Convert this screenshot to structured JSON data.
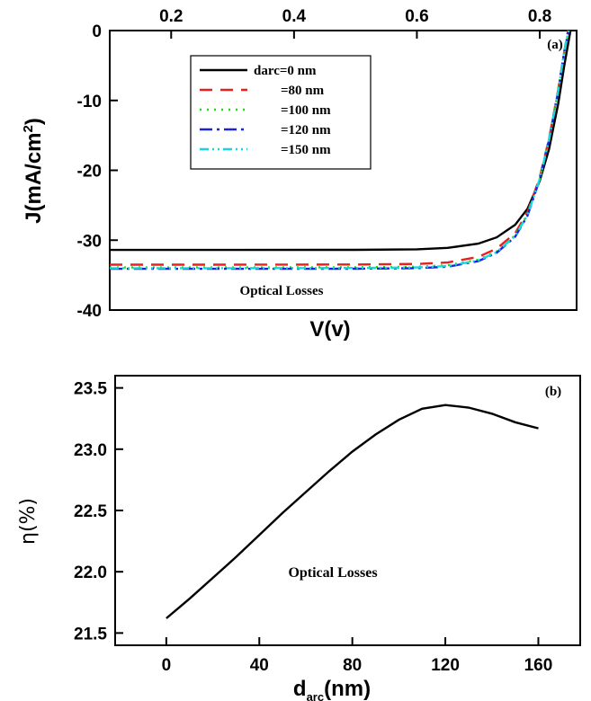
{
  "chart_data": [
    {
      "panel": "(a)",
      "type": "line",
      "xlabel": "V(v)",
      "ylabel": "J(mA/cm2)",
      "x_ticks": [
        0.2,
        0.4,
        0.6,
        0.8
      ],
      "x_tick_labels": [
        "0.2",
        "0.4",
        "0.6",
        "0.8"
      ],
      "y_ticks": [
        0,
        -10,
        -20,
        -30,
        -40
      ],
      "y_tick_labels": [
        "0",
        "-10",
        "-20",
        "-30",
        "-40"
      ],
      "xlim": [
        0.1,
        0.86
      ],
      "ylim": [
        -40,
        0
      ],
      "x_axis_position": "top",
      "annotation": "Optical Losses",
      "legend_position": "top-left",
      "series": [
        {
          "name": "darc=0 nm",
          "color": "#000000",
          "dash": "solid",
          "x": [
            0.1,
            0.3,
            0.5,
            0.6,
            0.65,
            0.7,
            0.73,
            0.76,
            0.78,
            0.8,
            0.815,
            0.83,
            0.84,
            0.85
          ],
          "y": [
            -31.4,
            -31.4,
            -31.38,
            -31.3,
            -31.1,
            -30.5,
            -29.6,
            -27.8,
            -25.5,
            -21.5,
            -17.0,
            -10.5,
            -5.0,
            0
          ]
        },
        {
          "name": "=80 nm",
          "color": "#e8201f",
          "dash": "14,9",
          "x": [
            0.1,
            0.3,
            0.5,
            0.6,
            0.65,
            0.7,
            0.73,
            0.76,
            0.78,
            0.8,
            0.815,
            0.83,
            0.84,
            0.846
          ],
          "y": [
            -33.5,
            -33.5,
            -33.48,
            -33.4,
            -33.2,
            -32.4,
            -31.2,
            -29.0,
            -26.0,
            -21.0,
            -15.5,
            -8.5,
            -3.0,
            0
          ]
        },
        {
          "name": "=100 nm",
          "color": "#14e014",
          "dash": "2,6",
          "x": [
            0.1,
            0.3,
            0.5,
            0.6,
            0.65,
            0.7,
            0.73,
            0.76,
            0.78,
            0.8,
            0.815,
            0.83,
            0.84,
            0.847
          ],
          "y": [
            -33.9,
            -33.9,
            -33.88,
            -33.8,
            -33.6,
            -32.8,
            -31.6,
            -29.3,
            -26.3,
            -21.2,
            -15.6,
            -8.6,
            -3.0,
            0
          ]
        },
        {
          "name": "=120 nm",
          "color": "#1a24e0",
          "dash": "14,5,3,5",
          "x": [
            0.1,
            0.3,
            0.5,
            0.6,
            0.65,
            0.7,
            0.73,
            0.76,
            0.78,
            0.8,
            0.815,
            0.83,
            0.84,
            0.847
          ],
          "y": [
            -34.1,
            -34.1,
            -34.08,
            -34.0,
            -33.8,
            -33.0,
            -31.8,
            -29.5,
            -26.5,
            -21.3,
            -15.7,
            -8.7,
            -3.0,
            0
          ]
        },
        {
          "name": "=150 nm",
          "color": "#14d8e0",
          "dash": "10,4,2,4,2,4",
          "x": [
            0.1,
            0.3,
            0.5,
            0.6,
            0.65,
            0.7,
            0.73,
            0.76,
            0.78,
            0.8,
            0.815,
            0.83,
            0.84,
            0.847
          ],
          "y": [
            -34.0,
            -34.0,
            -33.98,
            -33.9,
            -33.7,
            -32.9,
            -31.7,
            -29.4,
            -26.4,
            -21.25,
            -15.65,
            -8.65,
            -3.0,
            0
          ]
        }
      ]
    },
    {
      "panel": "(b)",
      "type": "line",
      "xlabel": "d",
      "xlabel_subscript": "arc",
      "xlabel_suffix": "(nm)",
      "ylabel": "η(%)",
      "x_ticks": [
        0,
        40,
        80,
        120,
        160
      ],
      "x_tick_labels": [
        "0",
        "40",
        "80",
        "120",
        "160"
      ],
      "y_ticks": [
        21.5,
        22.0,
        22.5,
        23.0,
        23.5
      ],
      "y_tick_labels": [
        "21.5",
        "22.0",
        "22.5",
        "23.0",
        "23.5"
      ],
      "xlim": [
        -22,
        178
      ],
      "ylim": [
        21.4,
        23.6
      ],
      "annotation": "Optical Losses",
      "series": [
        {
          "name": "",
          "color": "#000000",
          "dash": "solid",
          "x": [
            0,
            10,
            20,
            30,
            40,
            50,
            60,
            70,
            80,
            90,
            100,
            110,
            120,
            130,
            140,
            150,
            160
          ],
          "y": [
            21.62,
            21.78,
            21.95,
            22.12,
            22.3,
            22.48,
            22.65,
            22.82,
            22.98,
            23.12,
            23.24,
            23.33,
            23.36,
            23.34,
            23.29,
            23.22,
            23.17
          ]
        }
      ]
    }
  ]
}
